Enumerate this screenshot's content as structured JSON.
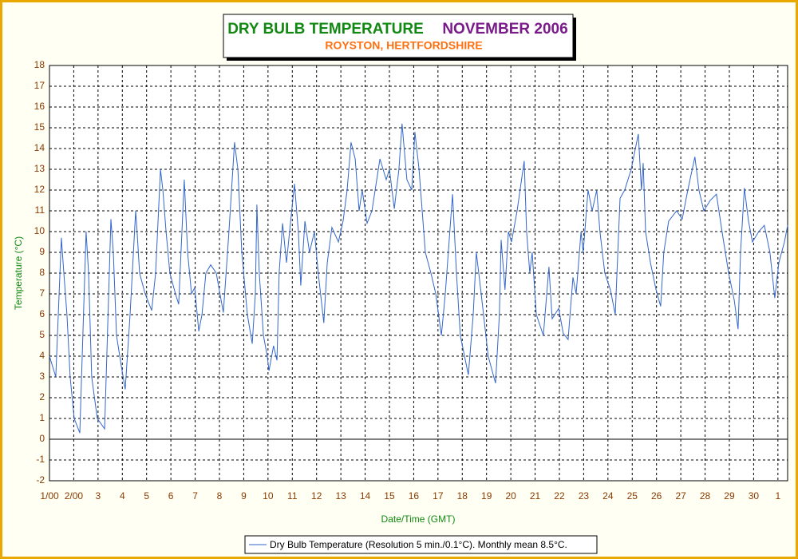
{
  "chart_data": {
    "type": "line",
    "title": "DRY BULB TEMPERATURE",
    "title_period": "NOVEMBER 2006",
    "subtitle": "ROYSTON, HERTFORDSHIRE",
    "x_label": "Date/Time (GMT)",
    "y_label": "Temperature (°C)",
    "xlim": [
      1,
      31.4
    ],
    "xticks": [
      {
        "value": 1,
        "label": "1/00"
      },
      {
        "value": 2,
        "label": "2/00"
      },
      3,
      4,
      5,
      6,
      7,
      8,
      9,
      10,
      11,
      12,
      13,
      14,
      15,
      16,
      17,
      18,
      19,
      20,
      21,
      22,
      23,
      24,
      25,
      26,
      27,
      28,
      29,
      30,
      {
        "value": 31,
        "label": "1"
      }
    ],
    "ylim": [
      -2,
      18
    ],
    "yticks": [
      -2,
      -1,
      0,
      1,
      2,
      3,
      4,
      5,
      6,
      7,
      8,
      9,
      10,
      11,
      12,
      13,
      14,
      15,
      16,
      17,
      18
    ],
    "grid": true,
    "x": [
      1.0,
      1.26,
      1.49,
      1.59,
      1.72,
      1.85,
      2.02,
      2.25,
      2.51,
      2.61,
      2.74,
      2.97,
      3.27,
      3.53,
      3.63,
      3.76,
      3.96,
      4.12,
      4.32,
      4.55,
      4.61,
      4.71,
      4.94,
      5.21,
      5.37,
      5.57,
      5.67,
      5.8,
      5.96,
      6.19,
      6.32,
      6.55,
      6.69,
      6.85,
      6.98,
      7.15,
      7.28,
      7.44,
      7.64,
      7.87,
      8.16,
      8.39,
      8.62,
      8.76,
      8.92,
      9.15,
      9.35,
      9.48,
      9.54,
      9.64,
      9.81,
      9.97,
      10.04,
      10.23,
      10.37,
      10.46,
      10.6,
      10.76,
      10.89,
      11.09,
      11.25,
      11.35,
      11.52,
      11.71,
      11.91,
      12.07,
      12.3,
      12.44,
      12.63,
      12.9,
      13.09,
      13.26,
      13.42,
      13.59,
      13.75,
      13.88,
      14.08,
      14.28,
      14.61,
      14.87,
      15.0,
      15.2,
      15.39,
      15.52,
      15.72,
      15.92,
      16.05,
      16.22,
      16.48,
      16.71,
      16.91,
      17.14,
      17.3,
      17.6,
      17.76,
      17.92,
      18.25,
      18.45,
      18.58,
      18.78,
      19.07,
      19.3,
      19.37,
      19.53,
      19.6,
      19.76,
      19.9,
      20.03,
      20.26,
      20.55,
      20.65,
      20.78,
      20.88,
      21.05,
      21.34,
      21.57,
      21.7,
      21.97,
      22.16,
      22.36,
      22.56,
      22.69,
      22.89,
      22.98,
      23.18,
      23.35,
      23.54,
      23.67,
      23.87,
      24.1,
      24.3,
      24.5,
      24.69,
      24.96,
      25.25,
      25.38,
      25.45,
      25.55,
      25.75,
      25.98,
      26.17,
      26.3,
      26.5,
      26.83,
      27.06,
      27.29,
      27.58,
      27.75,
      27.95,
      28.21,
      28.47,
      28.7,
      28.97,
      29.2,
      29.36,
      29.46,
      29.62,
      29.79,
      29.95,
      30.21,
      30.44,
      30.67,
      30.87,
      31.04,
      31.27,
      31.4
    ],
    "series": [
      {
        "name": "Dry Bulb Temperature (Resolution 5 min./0.1°C). Monthly mean 8.5°C.",
        "color": "#3366cc",
        "values": [
          4,
          3,
          9.7,
          8,
          6,
          3,
          1,
          0.3,
          10,
          8,
          3,
          1,
          0.5,
          10.6,
          9,
          5,
          3.5,
          2.4,
          6,
          11,
          10,
          8,
          7,
          6.2,
          8,
          13,
          12,
          10,
          8,
          7,
          6.5,
          12.5,
          9,
          7,
          7.3,
          5.2,
          6,
          8,
          8.4,
          8,
          6.1,
          10,
          14.3,
          13,
          9,
          6,
          4.6,
          7,
          11.3,
          8,
          5,
          4,
          3.3,
          4.5,
          3.8,
          8,
          10.4,
          8.5,
          10,
          12.3,
          10,
          7.4,
          10.5,
          9,
          10,
          8,
          5.6,
          8.5,
          10.2,
          9.5,
          10.5,
          12,
          14.3,
          13.5,
          11,
          12,
          10.4,
          11,
          13.5,
          12.5,
          13,
          11.1,
          13,
          15.2,
          12.5,
          12,
          14.8,
          13,
          9,
          8,
          7,
          5,
          7,
          11.8,
          8,
          5,
          3.1,
          6,
          9,
          7,
          4,
          3,
          2.7,
          6,
          9.6,
          7.2,
          10,
          9.5,
          11,
          13.4,
          10,
          8,
          9,
          6,
          5,
          8.3,
          5.8,
          6.3,
          5.1,
          4.8,
          7.8,
          7,
          10,
          9,
          12,
          11,
          12,
          10,
          8,
          7.2,
          6,
          11.6,
          12,
          13,
          14.7,
          12,
          13.3,
          10,
          8.5,
          7.2,
          6.4,
          9,
          10.5,
          11,
          10.6,
          12,
          13.6,
          12,
          11,
          11.5,
          11.8,
          10,
          8,
          6.7,
          5.3,
          9,
          12.1,
          10.5,
          9.5,
          10,
          10.3,
          9,
          6.8,
          8.5,
          9.5,
          10.3
        ]
      }
    ]
  }
}
